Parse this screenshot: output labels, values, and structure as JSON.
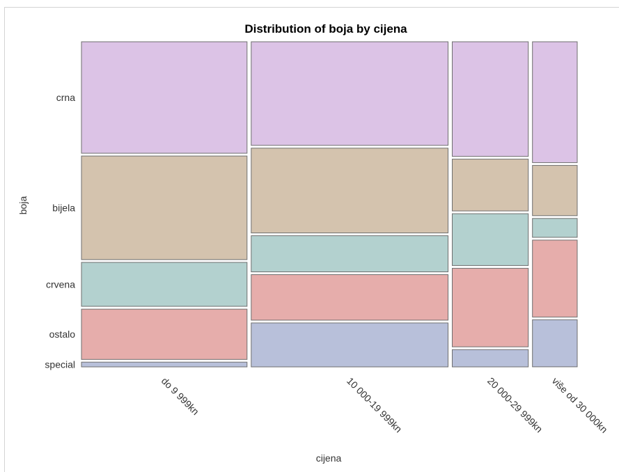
{
  "chart_data": {
    "type": "mosaic",
    "title": "Distribution of boja by cijena",
    "xlabel": "cijena",
    "ylabel": "boja",
    "categories": [
      "do 9 999kn",
      "10 000-19 999kn",
      "20 000-29 999kn",
      "više od 30 000kn"
    ],
    "column_proportions": [
      0.37,
      0.44,
      0.17,
      0.1
    ],
    "colors_top_to_bottom": [
      "crna",
      "bijela",
      "crvena",
      "ostalo",
      "special"
    ],
    "color_hex": {
      "crna": "#dcc3e6",
      "bijela": "#d4c3ae",
      "crvena": "#b3d1cf",
      "ostalo": "#e6adab",
      "special": "#b8c0da"
    },
    "y_tick_labels": [
      "crna",
      "bijela",
      "crvena",
      "ostalo",
      "special"
    ],
    "series": [
      {
        "name": "crna",
        "values": [
          0.355,
          0.33,
          0.365,
          0.385
        ]
      },
      {
        "name": "bijela",
        "values": [
          0.33,
          0.27,
          0.165,
          0.16
        ]
      },
      {
        "name": "crvena",
        "values": [
          0.14,
          0.115,
          0.165,
          0.06
        ]
      },
      {
        "name": "ostalo",
        "values": [
          0.16,
          0.145,
          0.25,
          0.245
        ]
      },
      {
        "name": "special",
        "values": [
          0.015,
          0.14,
          0.055,
          0.15
        ]
      }
    ],
    "ylim": [
      0,
      1
    ],
    "grid": false,
    "legend": "none"
  }
}
